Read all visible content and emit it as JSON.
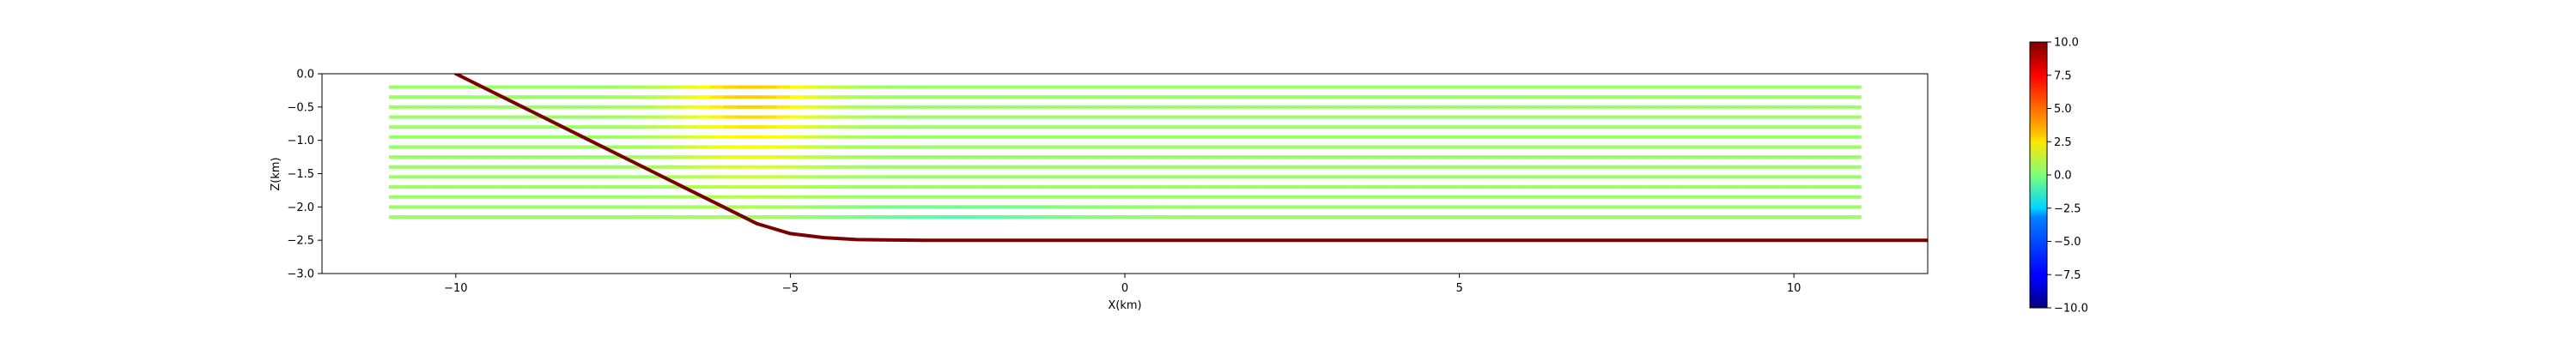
{
  "chart_data": {
    "type": "heatmap",
    "xlabel": "X(km)",
    "ylabel": "Z(km)",
    "xlim": [
      -12,
      12
    ],
    "ylim": [
      -3.0,
      0.0
    ],
    "xticks": [
      -10,
      -5,
      0,
      5,
      10
    ],
    "xtick_labels": [
      "−10",
      "−5",
      "0",
      "5",
      "10"
    ],
    "yticks": [
      0.0,
      -0.5,
      -1.0,
      -1.5,
      -2.0,
      -2.5,
      -3.0
    ],
    "ytick_labels": [
      "0.0",
      "−0.5",
      "−1.0",
      "−1.5",
      "−2.0",
      "−2.5",
      "−3.0"
    ],
    "grid": false,
    "colormap": "jet",
    "colorbar": {
      "vmin": -10.0,
      "vmax": 10.0,
      "ticks": [
        10.0,
        7.5,
        5.0,
        2.5,
        0.0,
        -2.5,
        -5.0,
        -7.5,
        -10.0
      ],
      "tick_labels": [
        "10.0",
        "7.5",
        "5.0",
        "2.5",
        "0.0",
        "−2.5",
        "−5.0",
        "−7.5",
        "−10.0"
      ]
    },
    "stations": {
      "x_range": [
        -11.0,
        11.0
      ],
      "z_levels": [
        -0.2,
        -0.35,
        -0.5,
        -0.65,
        -0.8,
        -0.95,
        -1.1,
        -1.25,
        -1.4,
        -1.55,
        -1.7,
        -1.85,
        -2.0,
        -2.15
      ],
      "background_value": 0.5,
      "anomalies": [
        {
          "x_center": -5.6,
          "z_center": -0.3,
          "x_width": 1.1,
          "z_width": 1.2,
          "peak": 3.0
        },
        {
          "x_center": -2.5,
          "z_center": -2.1,
          "x_width": 1.8,
          "z_width": 0.12,
          "peak": -1.6
        }
      ]
    },
    "interface_curve": {
      "color": "#7b0000",
      "x": [
        -10.0,
        -9.0,
        -8.0,
        -7.0,
        -6.5,
        -6.0,
        -5.5,
        -5.0,
        -4.5,
        -4.0,
        -3.0,
        -2.0,
        0.0,
        5.0,
        10.0,
        12.0
      ],
      "z": [
        0.0,
        -0.5,
        -1.0,
        -1.5,
        -1.75,
        -2.0,
        -2.25,
        -2.4,
        -2.46,
        -2.49,
        -2.5,
        -2.5,
        -2.5,
        -2.5,
        -2.5,
        -2.5
      ]
    }
  }
}
